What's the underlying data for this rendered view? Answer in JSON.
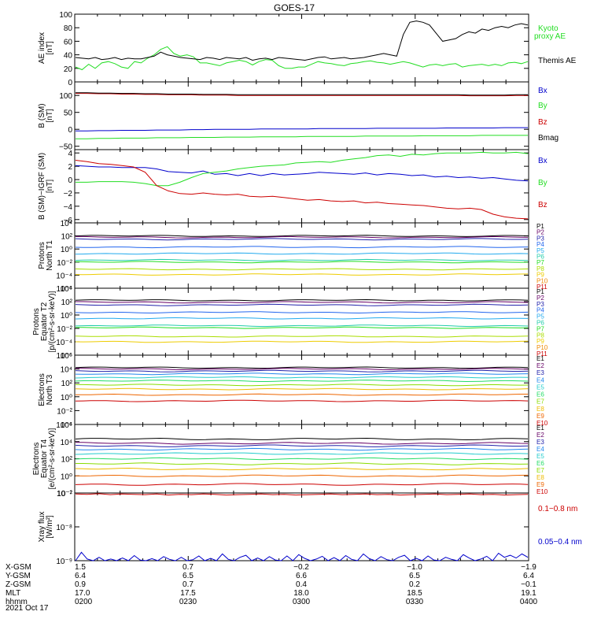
{
  "title": "GOES-17",
  "date_label": "2021 Oct 17",
  "colors": {
    "black": "#000000",
    "blue": "#0000cc",
    "green": "#22dd22",
    "red": "#cc0000",
    "p1": "#000000",
    "p2": "#660066",
    "p3": "#2222aa",
    "p4": "#2266ee",
    "p5": "#22aaee",
    "p6": "#22ccaa",
    "p7": "#22dd22",
    "p8": "#aadd00",
    "p9": "#eecc00",
    "p10": "#ee8800",
    "p11": "#cc0000",
    "e1": "#000000",
    "e2": "#660066",
    "e3": "#2222aa",
    "e4": "#2288ee",
    "e5": "#22cccc",
    "e6": "#22dd66",
    "e7": "#88dd00",
    "e8": "#eebb00",
    "e9": "#ee6600",
    "e10": "#cc0000"
  },
  "ephemeris": {
    "rows": [
      "X-GSM",
      "Y-GSM",
      "Z-GSM",
      "MLT",
      "hhmm"
    ],
    "columns": [
      {
        "time": "0200",
        "values": [
          "1.5",
          "6.4",
          "0.9",
          "17.0",
          "0200"
        ]
      },
      {
        "time": "0230",
        "values": [
          "0.7",
          "6.5",
          "0.7",
          "17.5",
          "0230"
        ]
      },
      {
        "time": "0300",
        "values": [
          "−0.2",
          "6.6",
          "0.4",
          "18.0",
          "0300"
        ]
      },
      {
        "time": "0330",
        "values": [
          "−1.0",
          "6.5",
          "0.2",
          "18.5",
          "0330"
        ]
      },
      {
        "time": "0400",
        "values": [
          "−1.9",
          "6.4",
          "−0.1",
          "19.1",
          "0400"
        ]
      }
    ]
  },
  "chart_data": [
    {
      "type": "line",
      "ylabel": [
        "AE index",
        "[nT]"
      ],
      "ylim": [
        0,
        100
      ],
      "yticks": [
        "0",
        "20",
        "40",
        "60",
        "80",
        "100"
      ],
      "legend": [
        "Kyoto",
        "proxy AE",
        "Themis AE"
      ],
      "series": [
        {
          "name": "Kyoto proxy AE",
          "color": "green",
          "y": [
            22,
            18,
            26,
            20,
            28,
            30,
            27,
            22,
            20,
            30,
            28,
            35,
            40,
            48,
            52,
            42,
            38,
            40,
            37,
            28,
            28,
            26,
            24,
            28,
            30,
            32,
            30,
            25,
            30,
            33,
            32,
            24,
            20,
            20,
            22,
            22,
            26,
            30,
            28,
            27,
            25,
            24,
            27,
            28,
            30,
            31,
            29,
            28,
            26,
            28,
            30,
            28,
            25,
            22,
            25,
            26,
            24,
            26,
            27,
            22,
            24,
            25,
            26,
            24,
            26,
            24,
            28,
            29,
            27,
            30
          ]
        },
        {
          "name": "Themis AE",
          "color": "black",
          "y": [
            36,
            35,
            34,
            36,
            33,
            34,
            36,
            33,
            35,
            34,
            34,
            36,
            38,
            44,
            40,
            38,
            36,
            35,
            34,
            33,
            36,
            35,
            33,
            36,
            35,
            34,
            36,
            32,
            34,
            35,
            33,
            36,
            35,
            34,
            33,
            32,
            34,
            36,
            37,
            34,
            35,
            36,
            34,
            35,
            36,
            38,
            40,
            42,
            40,
            38,
            70,
            88,
            90,
            88,
            84,
            72,
            60,
            62,
            64,
            70,
            74,
            72,
            78,
            76,
            80,
            82,
            80,
            84,
            86,
            84
          ]
        }
      ]
    },
    {
      "type": "line",
      "ylabel": [
        "B (SM)",
        "[nT]"
      ],
      "ylim": [
        -60,
        140
      ],
      "yticks": [
        "−50",
        "0",
        "50",
        "100"
      ],
      "legend": [
        "Bx",
        "By",
        "Bz",
        "Bmag"
      ],
      "series": [
        {
          "name": "Bx",
          "color": "blue",
          "y": [
            -5,
            -5,
            -4,
            -4,
            -3,
            -3,
            -3,
            -2,
            -2,
            -2,
            -1,
            -1,
            0,
            0,
            0,
            0,
            1,
            1,
            1,
            1,
            1,
            2,
            2,
            2,
            2,
            2,
            3,
            3,
            3,
            3,
            3,
            3,
            4,
            4,
            4,
            4,
            4,
            5,
            5,
            5
          ]
        },
        {
          "name": "By",
          "color": "green",
          "y": [
            -28,
            -28,
            -27,
            -27,
            -26,
            -26,
            -26,
            -25,
            -25,
            -25,
            -24,
            -24,
            -24,
            -23,
            -23,
            -23,
            -22,
            -22,
            -22,
            -22,
            -21,
            -21,
            -21,
            -21,
            -21,
            -20,
            -20,
            -20,
            -20,
            -20,
            -19,
            -19,
            -19,
            -19,
            -19,
            -18,
            -18,
            -18,
            -18,
            -18
          ]
        },
        {
          "name": "Bz",
          "color": "red",
          "y": [
            106,
            106,
            105,
            105,
            104,
            104,
            103,
            103,
            102,
            102,
            102,
            101,
            101,
            101,
            100,
            100,
            100,
            100,
            100,
            100,
            100,
            100,
            100,
            100,
            100,
            100,
            100,
            100,
            100,
            100,
            100,
            100,
            100,
            100,
            99,
            99,
            99,
            99,
            100,
            100
          ]
        },
        {
          "name": "Bmag",
          "color": "black",
          "y": [
            108,
            108,
            107,
            107,
            106,
            106,
            105,
            105,
            104,
            104,
            104,
            103,
            103,
            103,
            102,
            102,
            102,
            102,
            102,
            102,
            102,
            102,
            102,
            102,
            102,
            102,
            102,
            102,
            102,
            102,
            102,
            102,
            102,
            102,
            101,
            101,
            101,
            101,
            102,
            102
          ]
        }
      ]
    },
    {
      "type": "line",
      "ylabel": [
        "B (SM)−IGRF (SM)",
        "[nT]"
      ],
      "ylim": [
        -6.5,
        4.5
      ],
      "yticks": [
        "−6",
        "−4",
        "−2",
        "0",
        "2",
        "4"
      ],
      "legend": [
        "Bx",
        "By",
        "Bz"
      ],
      "series": [
        {
          "name": "Bx",
          "color": "blue",
          "y": [
            2.1,
            2.0,
            1.9,
            1.9,
            1.8,
            1.8,
            1.8,
            1.6,
            1.2,
            1.1,
            1.0,
            1.3,
            0.8,
            0.9,
            0.6,
            0.9,
            0.6,
            0.9,
            0.7,
            0.8,
            0.9,
            1.1,
            1.0,
            0.9,
            0.8,
            1.0,
            0.7,
            0.9,
            0.8,
            0.6,
            0.7,
            0.4,
            0.5,
            0.3,
            0.4,
            0.2,
            0.3,
            0.1,
            -0.1,
            -0.2
          ]
        },
        {
          "name": "By",
          "color": "green",
          "y": [
            -0.4,
            -0.4,
            -0.3,
            -0.3,
            -0.3,
            -0.4,
            -0.6,
            -0.9,
            -0.9,
            -0.4,
            0.3,
            0.9,
            1.1,
            1.3,
            1.6,
            1.8,
            2.0,
            2.1,
            2.2,
            2.5,
            2.6,
            2.7,
            2.6,
            2.9,
            3.1,
            3.3,
            3.6,
            3.7,
            3.5,
            3.8,
            3.7,
            3.9,
            4.0,
            4.0,
            4.0,
            4.1,
            4.0,
            4.0,
            4.1,
            3.9
          ]
        },
        {
          "name": "Bz",
          "color": "red",
          "y": [
            2.9,
            2.7,
            2.4,
            2.3,
            2.1,
            1.9,
            1.1,
            -0.9,
            -1.7,
            -2.1,
            -2.2,
            -2.0,
            -2.2,
            -2.3,
            -2.2,
            -2.5,
            -2.6,
            -2.5,
            -2.7,
            -2.9,
            -3.1,
            -3.0,
            -3.2,
            -3.3,
            -3.2,
            -3.5,
            -3.4,
            -3.6,
            -3.7,
            -3.8,
            -3.9,
            -4.1,
            -4.3,
            -4.4,
            -4.3,
            -4.5,
            -5.2,
            -5.6,
            -5.8,
            -5.9
          ]
        }
      ]
    },
    {
      "type": "line",
      "log_scale": true,
      "ylabel": [
        "Protons",
        "North T1"
      ],
      "ylim_log10": [
        -6,
        4
      ],
      "yticks": [
        "10⁴",
        "10²",
        "10⁰",
        "10⁻²",
        "10⁻⁴",
        "10⁻⁶"
      ],
      "legend": [
        "P1",
        "P2",
        "P3",
        "P4",
        "P5",
        "P6",
        "P7",
        "P8",
        "P9",
        "P10",
        "P11"
      ],
      "series": [
        {
          "name": "P1",
          "color": "p1",
          "log10": 2.0
        },
        {
          "name": "P2",
          "color": "p2",
          "log10": 1.8
        },
        {
          "name": "P3",
          "color": "p3",
          "log10": 1.5
        },
        {
          "name": "P4",
          "color": "p4",
          "log10": 0.3
        },
        {
          "name": "P5",
          "color": "p5",
          "log10": -0.7
        },
        {
          "name": "P6",
          "color": "p6",
          "log10": -1.7
        },
        {
          "name": "P7",
          "color": "p7",
          "log10": -2.0
        },
        {
          "name": "P8",
          "color": "p8",
          "log10": -3.1
        },
        {
          "name": "P9",
          "color": "p9",
          "log10": -3.9
        }
      ]
    },
    {
      "type": "line",
      "log_scale": true,
      "ylabel": [
        "Protons",
        "Equator T2",
        "[p/(cm²-s-sr-keV)]"
      ],
      "ylim_log10": [
        -6,
        4
      ],
      "yticks": [
        "10⁴",
        "10²",
        "10⁰",
        "10⁻²",
        "10⁻⁴",
        "10⁻⁶"
      ],
      "legend": [
        "P1",
        "P2",
        "P3",
        "P4",
        "P5",
        "P6",
        "P7",
        "P8",
        "P9",
        "P10",
        "P11"
      ],
      "series": [
        {
          "name": "P1",
          "color": "p1",
          "log10": 2.2
        },
        {
          "name": "P2",
          "color": "p2",
          "log10": 1.9
        },
        {
          "name": "P3",
          "color": "p3",
          "log10": 1.5
        },
        {
          "name": "P4",
          "color": "p4",
          "log10": 0.4
        },
        {
          "name": "P5",
          "color": "p5",
          "log10": -0.5
        },
        {
          "name": "P6",
          "color": "p6",
          "log10": -1.6
        },
        {
          "name": "P7",
          "color": "p7",
          "log10": -1.9
        },
        {
          "name": "P8",
          "color": "p8",
          "log10": -3.2
        },
        {
          "name": "P9",
          "color": "p9",
          "log10": -4.0
        }
      ]
    },
    {
      "type": "line",
      "log_scale": true,
      "ylabel": [
        "Electrons",
        "North T3"
      ],
      "ylim_log10": [
        -4,
        6
      ],
      "yticks": [
        "10⁶",
        "10⁴",
        "10²",
        "10⁰",
        "10⁻²",
        "10⁻⁴"
      ],
      "legend": [
        "E1",
        "E2",
        "E3",
        "E4",
        "E5",
        "E6",
        "E7",
        "E8",
        "E9",
        "E10"
      ],
      "series": [
        {
          "name": "E1",
          "color": "e1",
          "log10": 4.2
        },
        {
          "name": "E2",
          "color": "e2",
          "log10": 4.0
        },
        {
          "name": "E3",
          "color": "e3",
          "log10": 3.7
        },
        {
          "name": "E4",
          "color": "e4",
          "log10": 3.3
        },
        {
          "name": "E5",
          "color": "e5",
          "log10": 2.8
        },
        {
          "name": "E6",
          "color": "e6",
          "log10": 2.3
        },
        {
          "name": "E7",
          "color": "e7",
          "log10": 1.7
        },
        {
          "name": "E8",
          "color": "e8",
          "log10": 1.1
        },
        {
          "name": "E9",
          "color": "e9",
          "log10": 0.3
        },
        {
          "name": "E10",
          "color": "e10",
          "log10": -0.6
        }
      ]
    },
    {
      "type": "line",
      "log_scale": true,
      "ylabel": [
        "Electrons",
        "Equator T4",
        "[e/(cm²-s-sr-keV)]"
      ],
      "ylim_log10": [
        -2,
        6
      ],
      "yticks": [
        "10⁶",
        "10⁴",
        "10²",
        "10⁰",
        "10⁻²"
      ],
      "legend": [
        "E1",
        "E2",
        "E3",
        "E4",
        "E5",
        "E6",
        "E7",
        "E8",
        "E9",
        "E10"
      ],
      "series": [
        {
          "name": "E1",
          "color": "e1",
          "log10": 4.3
        },
        {
          "name": "E2",
          "color": "e2",
          "log10": 3.8
        },
        {
          "name": "E3",
          "color": "e3",
          "log10": 3.5
        },
        {
          "name": "E4",
          "color": "e4",
          "log10": 3.1
        },
        {
          "name": "E5",
          "color": "e5",
          "log10": 2.6
        },
        {
          "name": "E6",
          "color": "e6",
          "log10": 2.0
        },
        {
          "name": "E7",
          "color": "e7",
          "log10": 1.4
        },
        {
          "name": "E8",
          "color": "e8",
          "log10": 0.8
        },
        {
          "name": "E9",
          "color": "e9",
          "log10": 0.0
        },
        {
          "name": "E10",
          "color": "e10",
          "log10": -1.0
        }
      ]
    },
    {
      "type": "line",
      "log_scale": true,
      "ylabel": [
        "Xray flux",
        "[W/m²]"
      ],
      "ylim_log10": [
        -9,
        -7
      ],
      "yticks": [
        "10⁻⁷",
        "10⁻⁸",
        "10⁻⁹"
      ],
      "legend": [
        "0.1−0.8 nm",
        "0.05−0.4 nm"
      ],
      "series": [
        {
          "name": "0.1−0.8 nm",
          "color": "red",
          "log10": [
            -7.03,
            -7.04,
            -7.02,
            -7.05,
            -7.03,
            -7.04,
            -7.05,
            -7.03,
            -7.06,
            -7.04,
            -7.05,
            -7.03,
            -7.04,
            -7.06,
            -7.05,
            -7.04,
            -7.03,
            -7.05,
            -7.04,
            -7.06,
            -7.05,
            -7.04,
            -7.03,
            -7.05,
            -7.04,
            -7.03,
            -7.05,
            -7.04,
            -7.06,
            -7.05,
            -7.04,
            -7.03,
            -7.05,
            -7.04,
            -7.03,
            -7.05,
            -7.04,
            -7.06,
            -7.05,
            -7.04
          ]
        },
        {
          "name": "0.05−0.4 nm",
          "color": "blue",
          "log10": [
            -9.0,
            -8.75,
            -8.95,
            -9.0,
            -8.9,
            -9.0,
            -8.95,
            -9.0,
            -8.92,
            -9.0,
            -8.85,
            -8.98,
            -9.0,
            -8.94,
            -9.0,
            -8.88,
            -8.96,
            -9.0,
            -8.9,
            -9.0,
            -8.97,
            -8.86,
            -9.0,
            -8.93,
            -9.0,
            -8.8,
            -8.96,
            -9.0,
            -8.9,
            -8.84,
            -9.0,
            -8.92,
            -9.0,
            -8.88,
            -8.98,
            -9.0,
            -8.86,
            -9.0,
            -8.82,
            -8.93,
            -9.0,
            -8.95,
            -8.87,
            -9.0,
            -8.91,
            -9.0,
            -8.85,
            -8.96,
            -9.0,
            -8.8,
            -8.94,
            -9.0,
            -8.88,
            -8.97,
            -9.0,
            -8.9,
            -8.84,
            -9.0,
            -8.93,
            -9.0,
            -8.86,
            -8.98,
            -9.0,
            -8.9,
            -8.96,
            -9.0,
            -8.82,
            -8.92,
            -9.0,
            -8.95,
            -8.87,
            -9.0,
            -8.78,
            -8.9,
            -8.84,
            -8.92,
            -8.8,
            -8.9
          ]
        }
      ]
    }
  ]
}
